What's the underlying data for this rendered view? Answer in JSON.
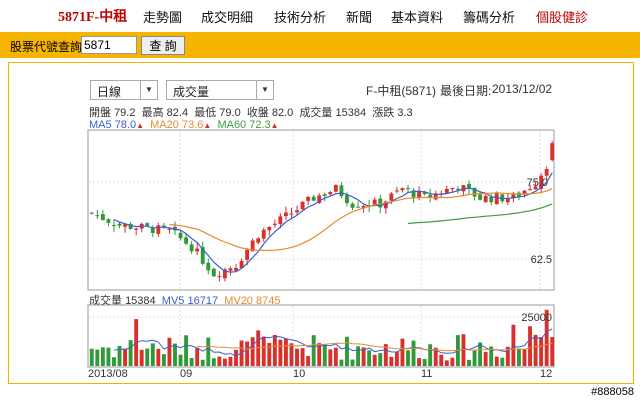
{
  "nav": {
    "brand": "5871F-中租",
    "items": [
      "走勢圖",
      "成交明細",
      "技術分析",
      "新聞",
      "基本資料",
      "籌碼分析",
      "個股健診"
    ]
  },
  "search": {
    "label": "股票代號查詢",
    "value": "5871",
    "button": "查 詢"
  },
  "controls": {
    "period": "日線",
    "indicator": "成交量",
    "stock": "F-中租(5871)",
    "last_date_label": "最後日期:",
    "last_date": "2013/12/02"
  },
  "quote": {
    "open_label": "開盤",
    "open": "79.2",
    "high_label": "最高",
    "high": "82.4",
    "low_label": "最低",
    "low": "79.0",
    "close_label": "收盤",
    "close": "82.0",
    "volume_label": "成交量",
    "volume": "15384",
    "change_label": "漲跌",
    "change": "3.3"
  },
  "ma": {
    "ma5_label": "MA5",
    "ma5": "78.0",
    "ma20_label": "MA20",
    "ma20": "73.6",
    "ma60_label": "MA60",
    "ma60": "72.3"
  },
  "vol_info": {
    "vol_label": "成交量",
    "vol": "15384",
    "mv5_label": "MV5",
    "mv5": "16717",
    "mv20_label": "MV20",
    "mv20": "8745"
  },
  "colors": {
    "up": "#d9302c",
    "down": "#2f9a3a",
    "ma5": "#3a5fcd",
    "ma20": "#e88a2e",
    "ma60": "#3e9a3e",
    "accent": "#f7b500",
    "brand": "#c00000"
  },
  "watermark": "#888058",
  "chart_data": {
    "type": "candlestick",
    "price_ticks": [
      "75.0",
      "62.5"
    ],
    "volume_ticks": [
      "25000"
    ],
    "x_ticks": [
      "2013/08",
      "09",
      "10",
      "11",
      "12"
    ],
    "ma5_last": 78.0,
    "ma20_last": 73.6,
    "ma60_last": 72.3,
    "last_candle": {
      "open": 79.2,
      "high": 82.4,
      "low": 79.0,
      "close": 82.0,
      "volume": 15384
    }
  }
}
